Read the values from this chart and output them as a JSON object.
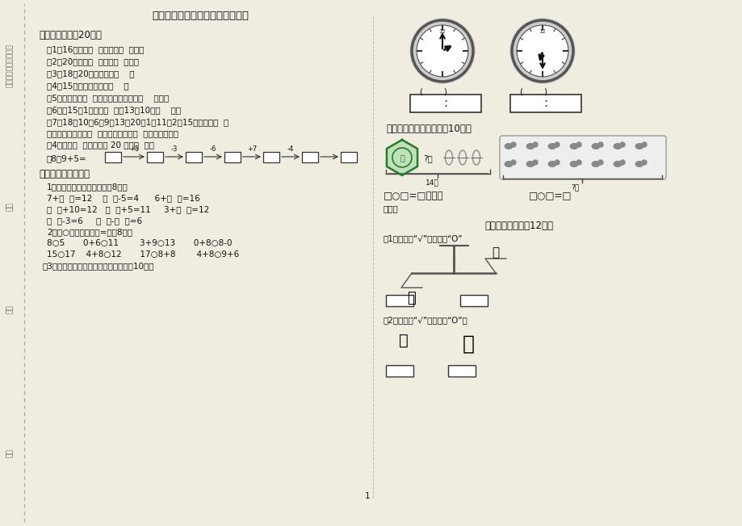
{
  "title": "人教版一年级数学上册期末检测卷",
  "bg_color": "#f0ece0",
  "text_color": "#111111",
  "page_num": "1",
  "sec1_title": "一、我会填数（20分）",
  "sec1_items": [
    "（1）16里面有（  ）个十和（  ）个一",
    "（2）20里面有（  ）个或（  ）个一",
    "（3）18和20中间的数是（    ）",
    "（4）15前面的一个数是（    ）",
    "（5）正方体有（  ）个面，这些面都是（    ）形。",
    "（6）比15大1的数是（  ），13比10多（    ）。",
    "（7）18、10、6、9、13、20、1、11、2、15）一共有（  ）",
    "个数，最大的数是（  ），最小的数是（  ），从左数起，",
    "笥4个数是（  ），从右数 20 在第（  ）。",
    "（8）9+5="
  ],
  "sec2_title": "二、我会按要求做题",
  "sec2_sub1": "1、在括号里填合适的数。（8分）",
  "sec2_sub1_lines": [
    "7+（  ）=12    （  ）-5=4      6+（  ）=16",
    "（  ）+10=12   （  ）+5=11     3+（  ）=12",
    "（  ）-3=6     （  ）-（  ）=6"
  ],
  "sec2_sub2": "2、在○里填》《或「=」（8分）",
  "sec2_sub2_lines": [
    "8○5       0+6○11        3+9○13       0+8○8-0",
    "15○17    4+8○12       17○8+8        4+8○9+6"
  ],
  "sec2_sub3": "、3、用两种方法记下钟表上的时刻。（10分）",
  "sec3_title": "三、我会看图列式计算（10分）",
  "sec4_title": "四、我能比一比（12分）",
  "sec4_item1": "（1）重的画“√”，轻的画“O”",
  "sec4_item2": "（2）高的画“√”，轻的画“O”。",
  "arrow_labels": [
    "+5",
    "-3",
    "-6",
    "+7",
    "-4"
  ]
}
